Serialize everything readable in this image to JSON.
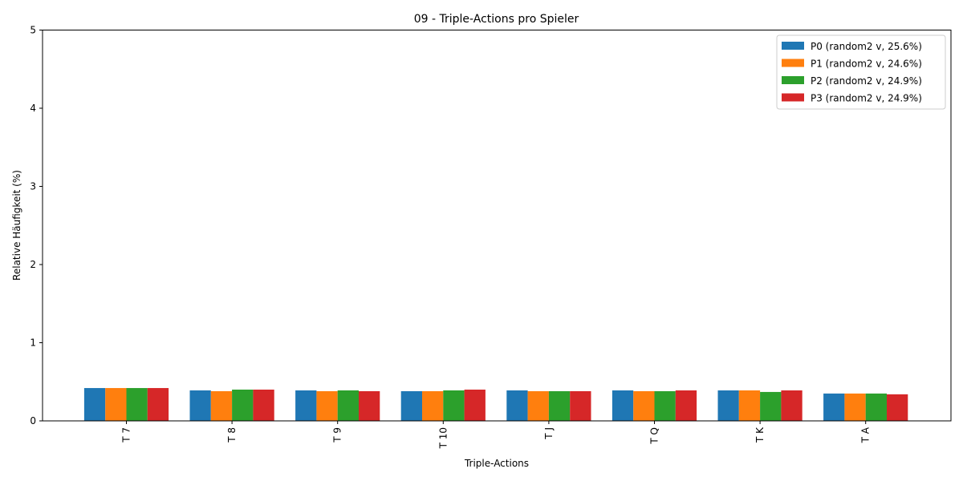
{
  "chart_data": {
    "type": "bar",
    "title": "09 - Triple-Actions pro Spieler",
    "xlabel": "Triple-Actions",
    "ylabel": "Relative Häufigkeit (%)",
    "ylim": [
      0,
      5
    ],
    "yticks": [
      0,
      1,
      2,
      3,
      4,
      5
    ],
    "categories": [
      "T 7",
      "T 8",
      "T 9",
      "T 10",
      "T J",
      "T Q",
      "T K",
      "T A"
    ],
    "series": [
      {
        "name": "P0 (random2 v, 25.6%)",
        "color": "#1f77b4",
        "values": [
          0.42,
          0.39,
          0.39,
          0.38,
          0.39,
          0.39,
          0.39,
          0.35
        ]
      },
      {
        "name": "P1 (random2 v, 24.6%)",
        "color": "#ff7f0e",
        "values": [
          0.42,
          0.38,
          0.38,
          0.38,
          0.38,
          0.38,
          0.39,
          0.35
        ]
      },
      {
        "name": "P2 (random2 v, 24.9%)",
        "color": "#2ca02c",
        "values": [
          0.42,
          0.4,
          0.39,
          0.39,
          0.38,
          0.38,
          0.37,
          0.35
        ]
      },
      {
        "name": "P3 (random2 v, 24.9%)",
        "color": "#d62728",
        "values": [
          0.42,
          0.4,
          0.38,
          0.4,
          0.38,
          0.39,
          0.39,
          0.34
        ]
      }
    ],
    "legend": "top-right",
    "grid": false
  }
}
